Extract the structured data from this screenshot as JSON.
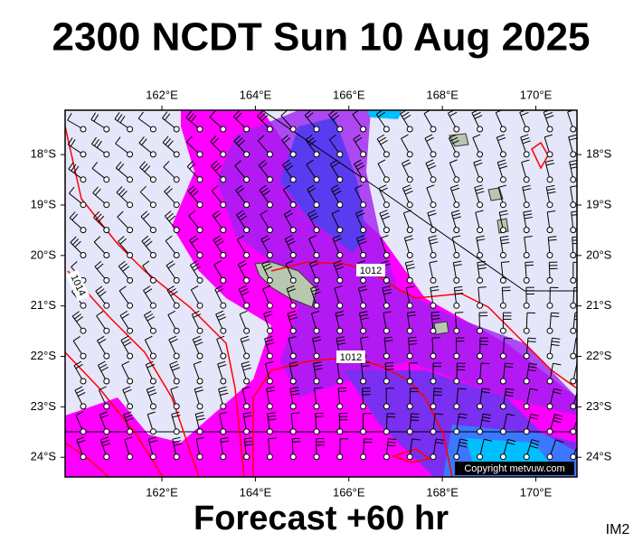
{
  "title": "2300 NCDT Sun 10 Aug 2025",
  "footer": "Forecast +60 hr",
  "image_id": "IM2",
  "copyright": "Copyright metvuw.com",
  "map": {
    "lon_lim": [
      159.93,
      170.88
    ],
    "lat_lim": [
      -17.12,
      -24.39
    ],
    "lon_ticks": [
      {
        "value": 162,
        "label": "162°E"
      },
      {
        "value": 164,
        "label": "164°E"
      },
      {
        "value": 166,
        "label": "166°E"
      },
      {
        "value": 168,
        "label": "168°E"
      },
      {
        "value": 170,
        "label": "170°E"
      }
    ],
    "lat_ticks": [
      {
        "value": -18,
        "label": "18°S"
      },
      {
        "value": -19,
        "label": "19°S"
      },
      {
        "value": -20,
        "label": "20°S"
      },
      {
        "value": -21,
        "label": "21°S"
      },
      {
        "value": -22,
        "label": "22°S"
      },
      {
        "value": -23,
        "label": "23°S"
      },
      {
        "value": -24,
        "label": "24°S"
      }
    ],
    "isobar_labels": [
      "1012",
      "1012",
      "1014"
    ]
  }
}
